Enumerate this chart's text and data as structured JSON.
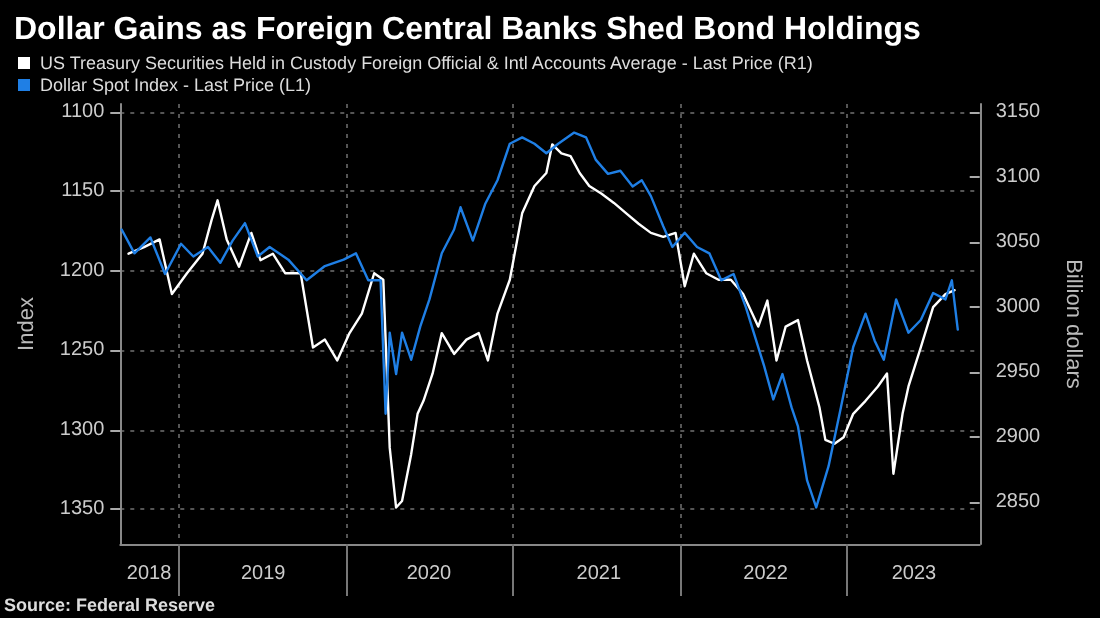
{
  "chart_data": {
    "type": "line",
    "title": "Dollar Gains as Foreign Central Banks Shed Bond Holdings",
    "ylabel": "Index",
    "y2label": "Billion dollars",
    "annotations": [
      "Source: Federal Reserve"
    ],
    "legend": "top left",
    "grid": true,
    "marker": "none",
    "line_style": "solid",
    "xlim": [
      "2018-08-25",
      "2023-10-20"
    ],
    "xticks": [
      {
        "value": "2018-10-27",
        "label": "2018"
      },
      {
        "value": "2019-01-01",
        "label": null
      },
      {
        "value": "2019-07-04",
        "label": "2019"
      },
      {
        "value": "2020-01-01",
        "label": null
      },
      {
        "value": "2020-07-01",
        "label": "2020"
      },
      {
        "value": "2021-01-01",
        "label": null
      },
      {
        "value": "2021-07-08",
        "label": "2021"
      },
      {
        "value": "2022-01-01",
        "label": null
      },
      {
        "value": "2022-07-08",
        "label": "2022"
      },
      {
        "value": "2023-01-01",
        "label": null
      },
      {
        "value": "2023-05-29",
        "label": "2023"
      }
    ],
    "ylim": [
      1372,
      1095
    ],
    "yticks": [
      1100,
      1150,
      1200,
      1250,
      1300,
      1350
    ],
    "y2lim": [
      2818,
      3156
    ],
    "y2ticks": [
      2850,
      2900,
      2950,
      3000,
      3050,
      3100,
      3150
    ],
    "series": [
      {
        "name": "US Treasury Securities Held in Custody Foreign Official & Intl Accounts Average - Last Price (R1)",
        "color": "#ffffff",
        "axis": "y2",
        "x": [
          "2018-09-12",
          "2018-10-16",
          "2018-11-19",
          "2018-12-16",
          "2019-01-18",
          "2019-02-21",
          "2019-03-13",
          "2019-03-26",
          "2019-04-15",
          "2019-05-12",
          "2019-06-08",
          "2019-06-28",
          "2019-07-25",
          "2019-08-21",
          "2019-09-24",
          "2019-10-21",
          "2019-11-16",
          "2019-12-13",
          "2020-01-09",
          "2020-02-05",
          "2020-03-03",
          "2020-03-23",
          "2020-04-06",
          "2020-04-20",
          "2020-05-03",
          "2020-05-23",
          "2020-06-06",
          "2020-06-19",
          "2020-07-09",
          "2020-07-29",
          "2020-08-25",
          "2020-09-21",
          "2020-10-18",
          "2020-11-07",
          "2020-11-28",
          "2020-12-25",
          "2021-01-21",
          "2021-02-17",
          "2021-03-15",
          "2021-03-28",
          "2021-04-17",
          "2021-05-07",
          "2021-05-27",
          "2021-06-17",
          "2021-07-14",
          "2021-08-10",
          "2021-09-06",
          "2021-10-03",
          "2021-10-30",
          "2021-11-26",
          "2021-12-23",
          "2022-01-12",
          "2022-02-01",
          "2022-02-28",
          "2022-03-27",
          "2022-04-23",
          "2022-05-20",
          "2022-06-22",
          "2022-07-12",
          "2022-08-01",
          "2022-08-21",
          "2022-09-17",
          "2022-10-07",
          "2022-11-03",
          "2022-11-16",
          "2022-12-06",
          "2022-12-26",
          "2023-01-16",
          "2023-02-12",
          "2023-03-11",
          "2023-03-31",
          "2023-04-14",
          "2023-05-04",
          "2023-05-17",
          "2023-06-13",
          "2023-07-10",
          "2023-08-06",
          "2023-08-26"
        ],
        "values": [
          3041,
          3046,
          3052,
          3010,
          3026,
          3041,
          3067,
          3082,
          3052,
          3031,
          3057,
          3036,
          3041,
          3026,
          3026,
          2969,
          2975,
          2959,
          2980,
          2995,
          3026,
          3021,
          2892,
          2846,
          2851,
          2887,
          2918,
          2928,
          2949,
          2980,
          2964,
          2975,
          2980,
          2959,
          2995,
          3021,
          3072,
          3093,
          3103,
          3125,
          3118,
          3116,
          3103,
          3093,
          3087,
          3080,
          3072,
          3064,
          3057,
          3054,
          3057,
          3016,
          3041,
          3026,
          3021,
          3021,
          3010,
          2985,
          3005,
          2959,
          2985,
          2990,
          2959,
          2923,
          2898,
          2895,
          2900,
          2918,
          2928,
          2939,
          2949,
          2872,
          2918,
          2939,
          2969,
          3000,
          3010,
          3013
        ]
      },
      {
        "name": "Dollar Spot Index - Last Price (L1)",
        "color": "#1f7fe5",
        "x": [
          "2018-08-28",
          "2018-09-25",
          "2018-10-30",
          "2018-12-01",
          "2019-01-05",
          "2019-02-01",
          "2019-03-05",
          "2019-04-01",
          "2019-04-28",
          "2019-05-25",
          "2019-06-22",
          "2019-07-18",
          "2019-08-28",
          "2019-10-07",
          "2019-11-16",
          "2019-12-27",
          "2020-01-23",
          "2020-02-19",
          "2020-03-17",
          "2020-03-28",
          "2020-04-06",
          "2020-04-20",
          "2020-05-03",
          "2020-05-23",
          "2020-06-12",
          "2020-07-02",
          "2020-07-29",
          "2020-08-25",
          "2020-09-08",
          "2020-10-05",
          "2020-11-01",
          "2020-11-28",
          "2020-12-25",
          "2021-01-21",
          "2021-02-17",
          "2021-03-15",
          "2021-04-10",
          "2021-05-15",
          "2021-06-10",
          "2021-07-01",
          "2021-07-28",
          "2021-08-24",
          "2021-09-20",
          "2021-10-10",
          "2021-10-30",
          "2021-11-26",
          "2021-12-16",
          "2022-01-12",
          "2022-02-08",
          "2022-03-07",
          "2022-04-02",
          "2022-04-29",
          "2022-05-26",
          "2022-06-22",
          "2022-07-05",
          "2022-07-25",
          "2022-08-14",
          "2022-09-03",
          "2022-09-17",
          "2022-10-07",
          "2022-10-27",
          "2022-11-23",
          "2022-12-20",
          "2023-01-16",
          "2023-02-12",
          "2023-03-04",
          "2023-03-24",
          "2023-04-20",
          "2023-05-17",
          "2023-06-13",
          "2023-07-10",
          "2023-08-06",
          "2023-08-20",
          "2023-09-02"
        ],
        "values": [
          1174,
          1189,
          1179,
          1202,
          1183,
          1191,
          1185,
          1195,
          1181,
          1170,
          1191,
          1185,
          1193,
          1206,
          1197,
          1193,
          1189,
          1206,
          1206,
          1290,
          1239,
          1265,
          1239,
          1256,
          1235,
          1218,
          1189,
          1174,
          1160,
          1181,
          1158,
          1143,
          1120,
          1116,
          1120,
          1126,
          1120,
          1113,
          1116,
          1130,
          1139,
          1137,
          1147,
          1143,
          1153,
          1172,
          1185,
          1176,
          1185,
          1189,
          1206,
          1202,
          1223,
          1248,
          1260,
          1281,
          1265,
          1286,
          1298,
          1332,
          1349,
          1323,
          1286,
          1248,
          1227,
          1244,
          1256,
          1218,
          1239,
          1231,
          1214,
          1218,
          1206,
          1237
        ]
      }
    ]
  }
}
